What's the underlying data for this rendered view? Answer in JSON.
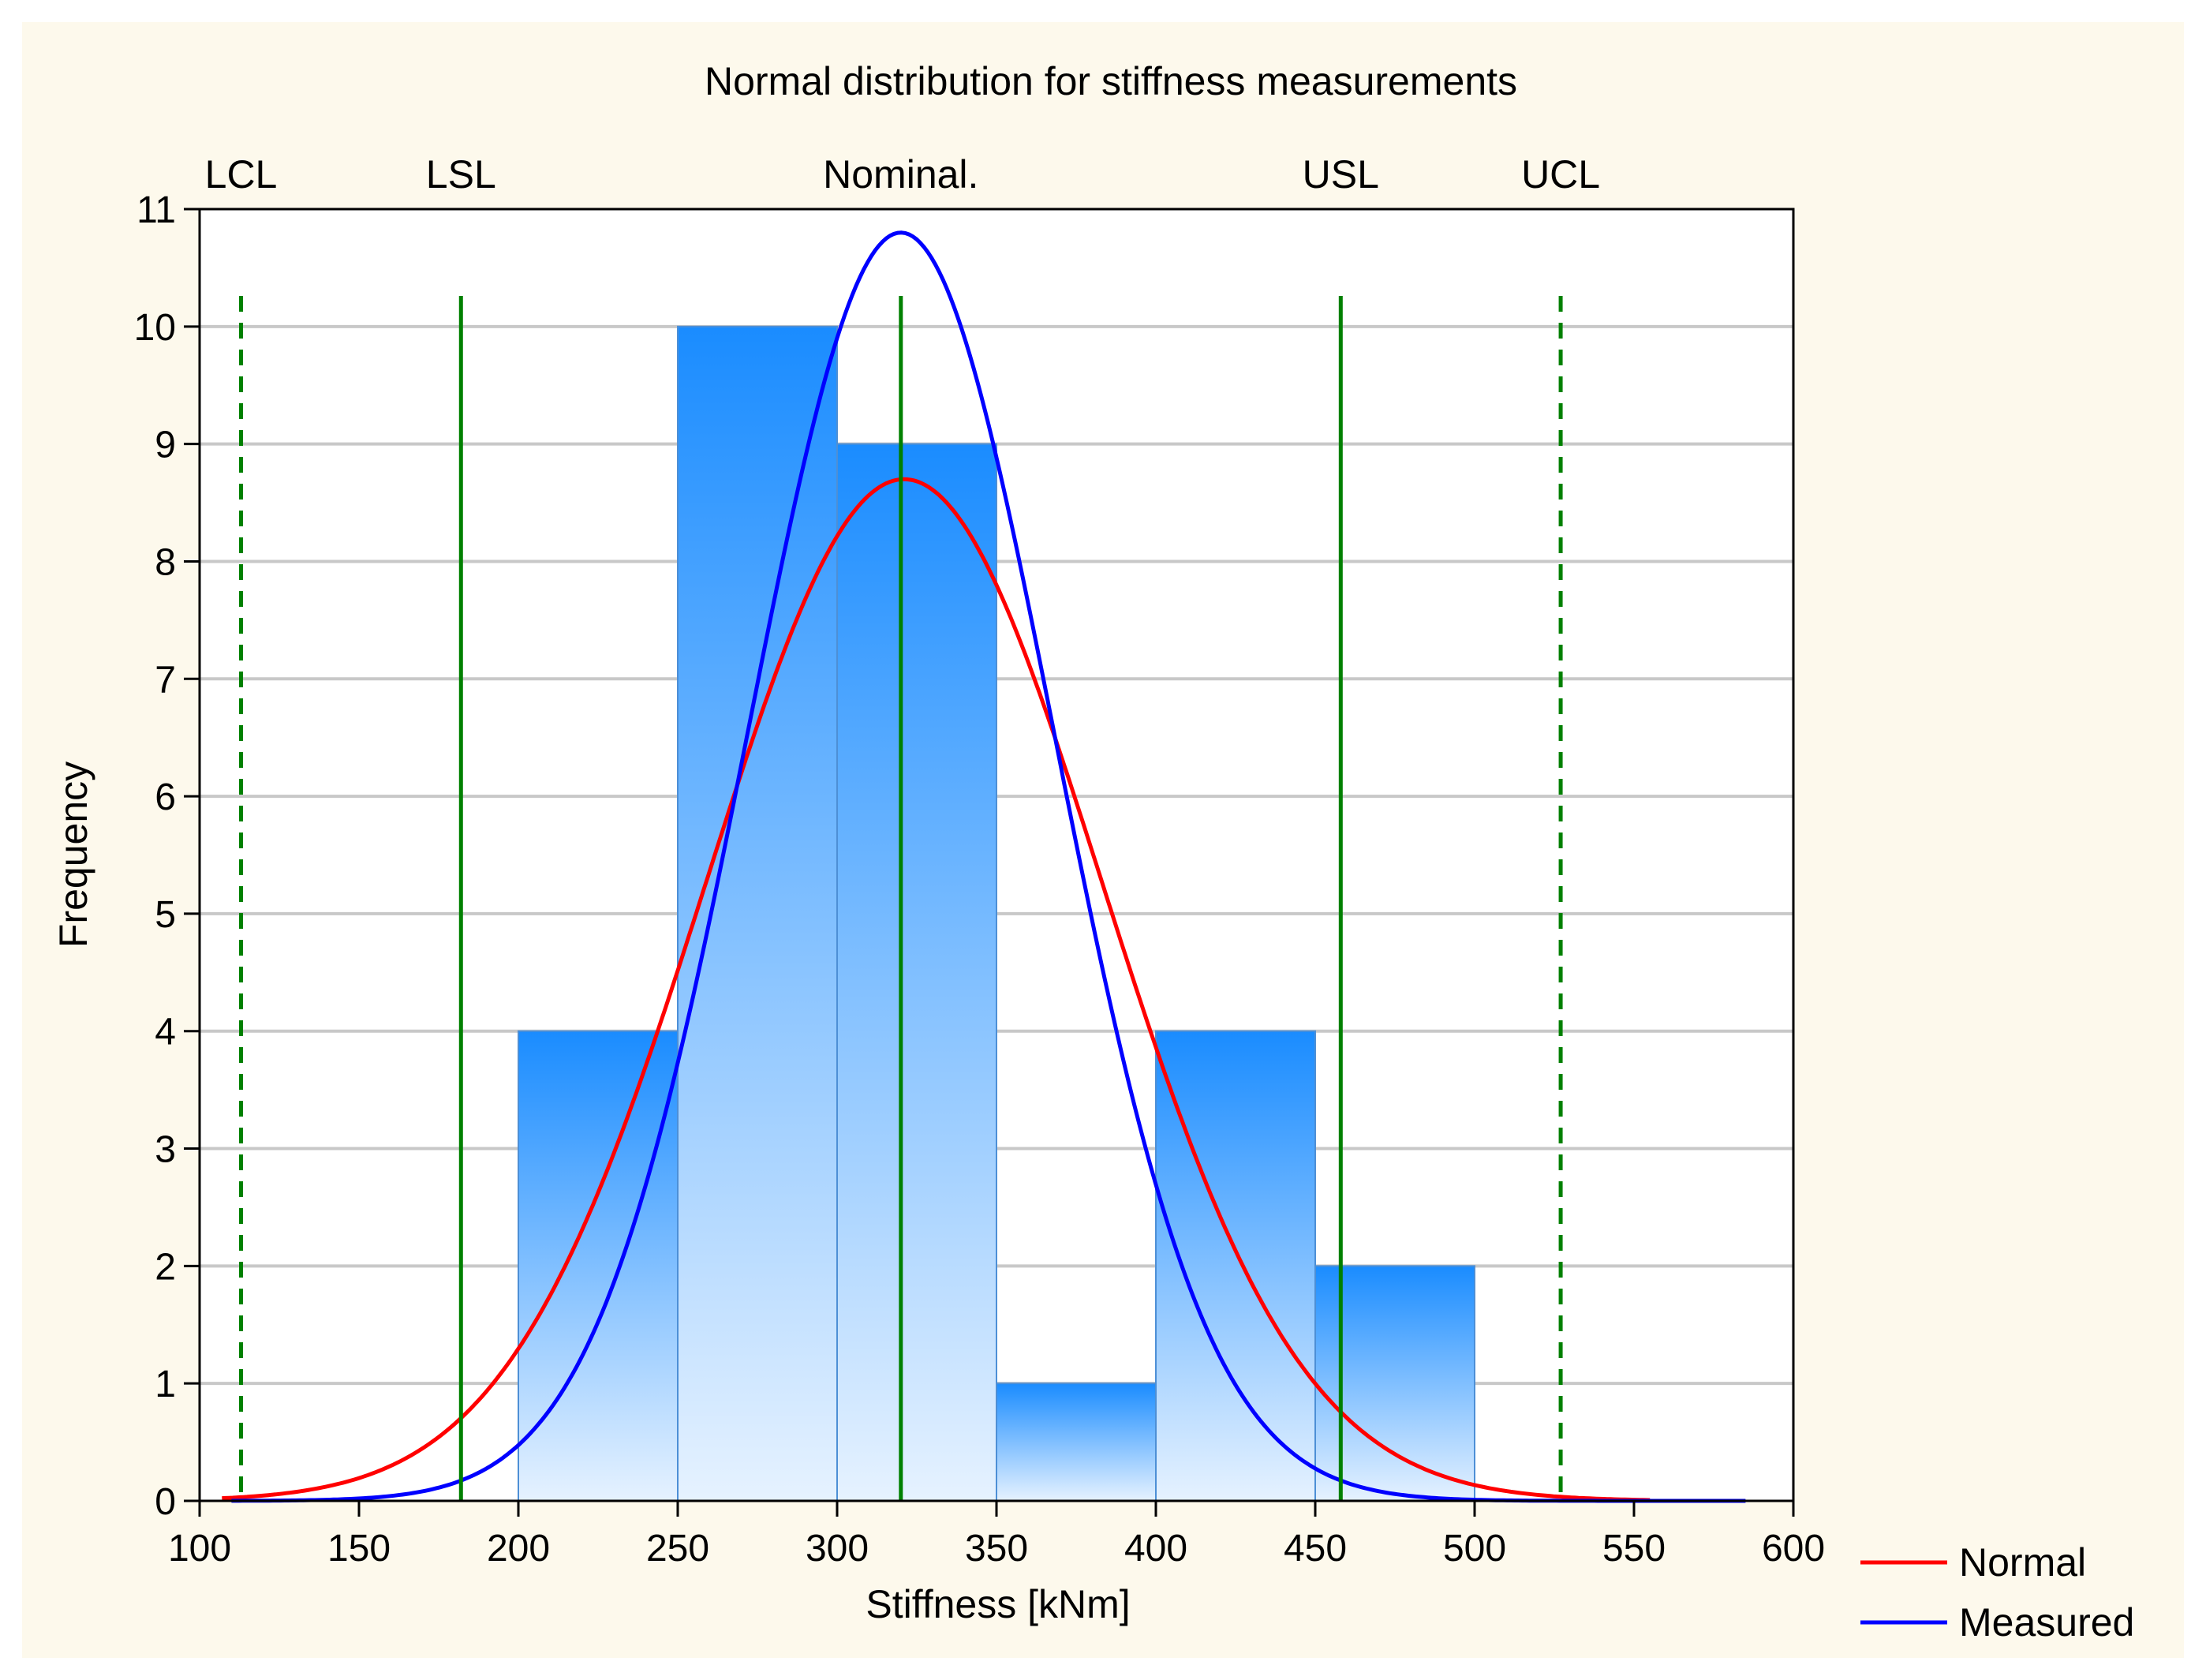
{
  "chart_data": {
    "type": "bar",
    "title": "Normal distribution for stiffness measurements",
    "xlabel": "Stiffness [kNm]",
    "ylabel": "Frequency",
    "xlim": [
      100,
      600
    ],
    "ylim": [
      0,
      11
    ],
    "x_ticks": [
      100,
      150,
      200,
      250,
      300,
      350,
      400,
      450,
      500,
      550,
      600
    ],
    "y_ticks": [
      0,
      1,
      2,
      3,
      4,
      5,
      6,
      7,
      8,
      9,
      10,
      11
    ],
    "grid": true,
    "histogram": [
      {
        "from": 200,
        "to": 250,
        "value": 4
      },
      {
        "from": 250,
        "to": 300,
        "value": 10
      },
      {
        "from": 300,
        "to": 350,
        "value": 9
      },
      {
        "from": 350,
        "to": 400,
        "value": 1
      },
      {
        "from": 400,
        "to": 450,
        "value": 4
      },
      {
        "from": 450,
        "to": 500,
        "value": 2
      }
    ],
    "reference_lines": [
      {
        "label": "LCL",
        "x": 113,
        "style": "dashed"
      },
      {
        "label": "LSL",
        "x": 182,
        "style": "solid"
      },
      {
        "label": "Nominal.",
        "x": 320,
        "style": "solid"
      },
      {
        "label": "USL",
        "x": 458,
        "style": "solid"
      },
      {
        "label": "UCL",
        "x": 527,
        "style": "dashed"
      }
    ],
    "series": [
      {
        "name": "Normal",
        "type": "normal_curve",
        "mean": 321,
        "sd": 62,
        "peak": 8.7,
        "x_range": [
          107,
          555
        ]
      },
      {
        "name": "Measured",
        "type": "normal_curve",
        "mean": 320,
        "sd": 48,
        "peak": 10.8,
        "x_range": [
          110,
          585
        ]
      }
    ],
    "legend": {
      "placement": "bottom-right",
      "entries": [
        "Normal",
        "Measured"
      ]
    },
    "colors": {
      "normal": "#ff0000",
      "measured": "#0000ff",
      "reference": "#008000",
      "bar_top": "#1a8cff",
      "bar_bottom": "#e6f2ff",
      "bar_edge": "#4d8fd6",
      "grid": "#c8c8c8",
      "background": "#fdf9ec"
    }
  }
}
